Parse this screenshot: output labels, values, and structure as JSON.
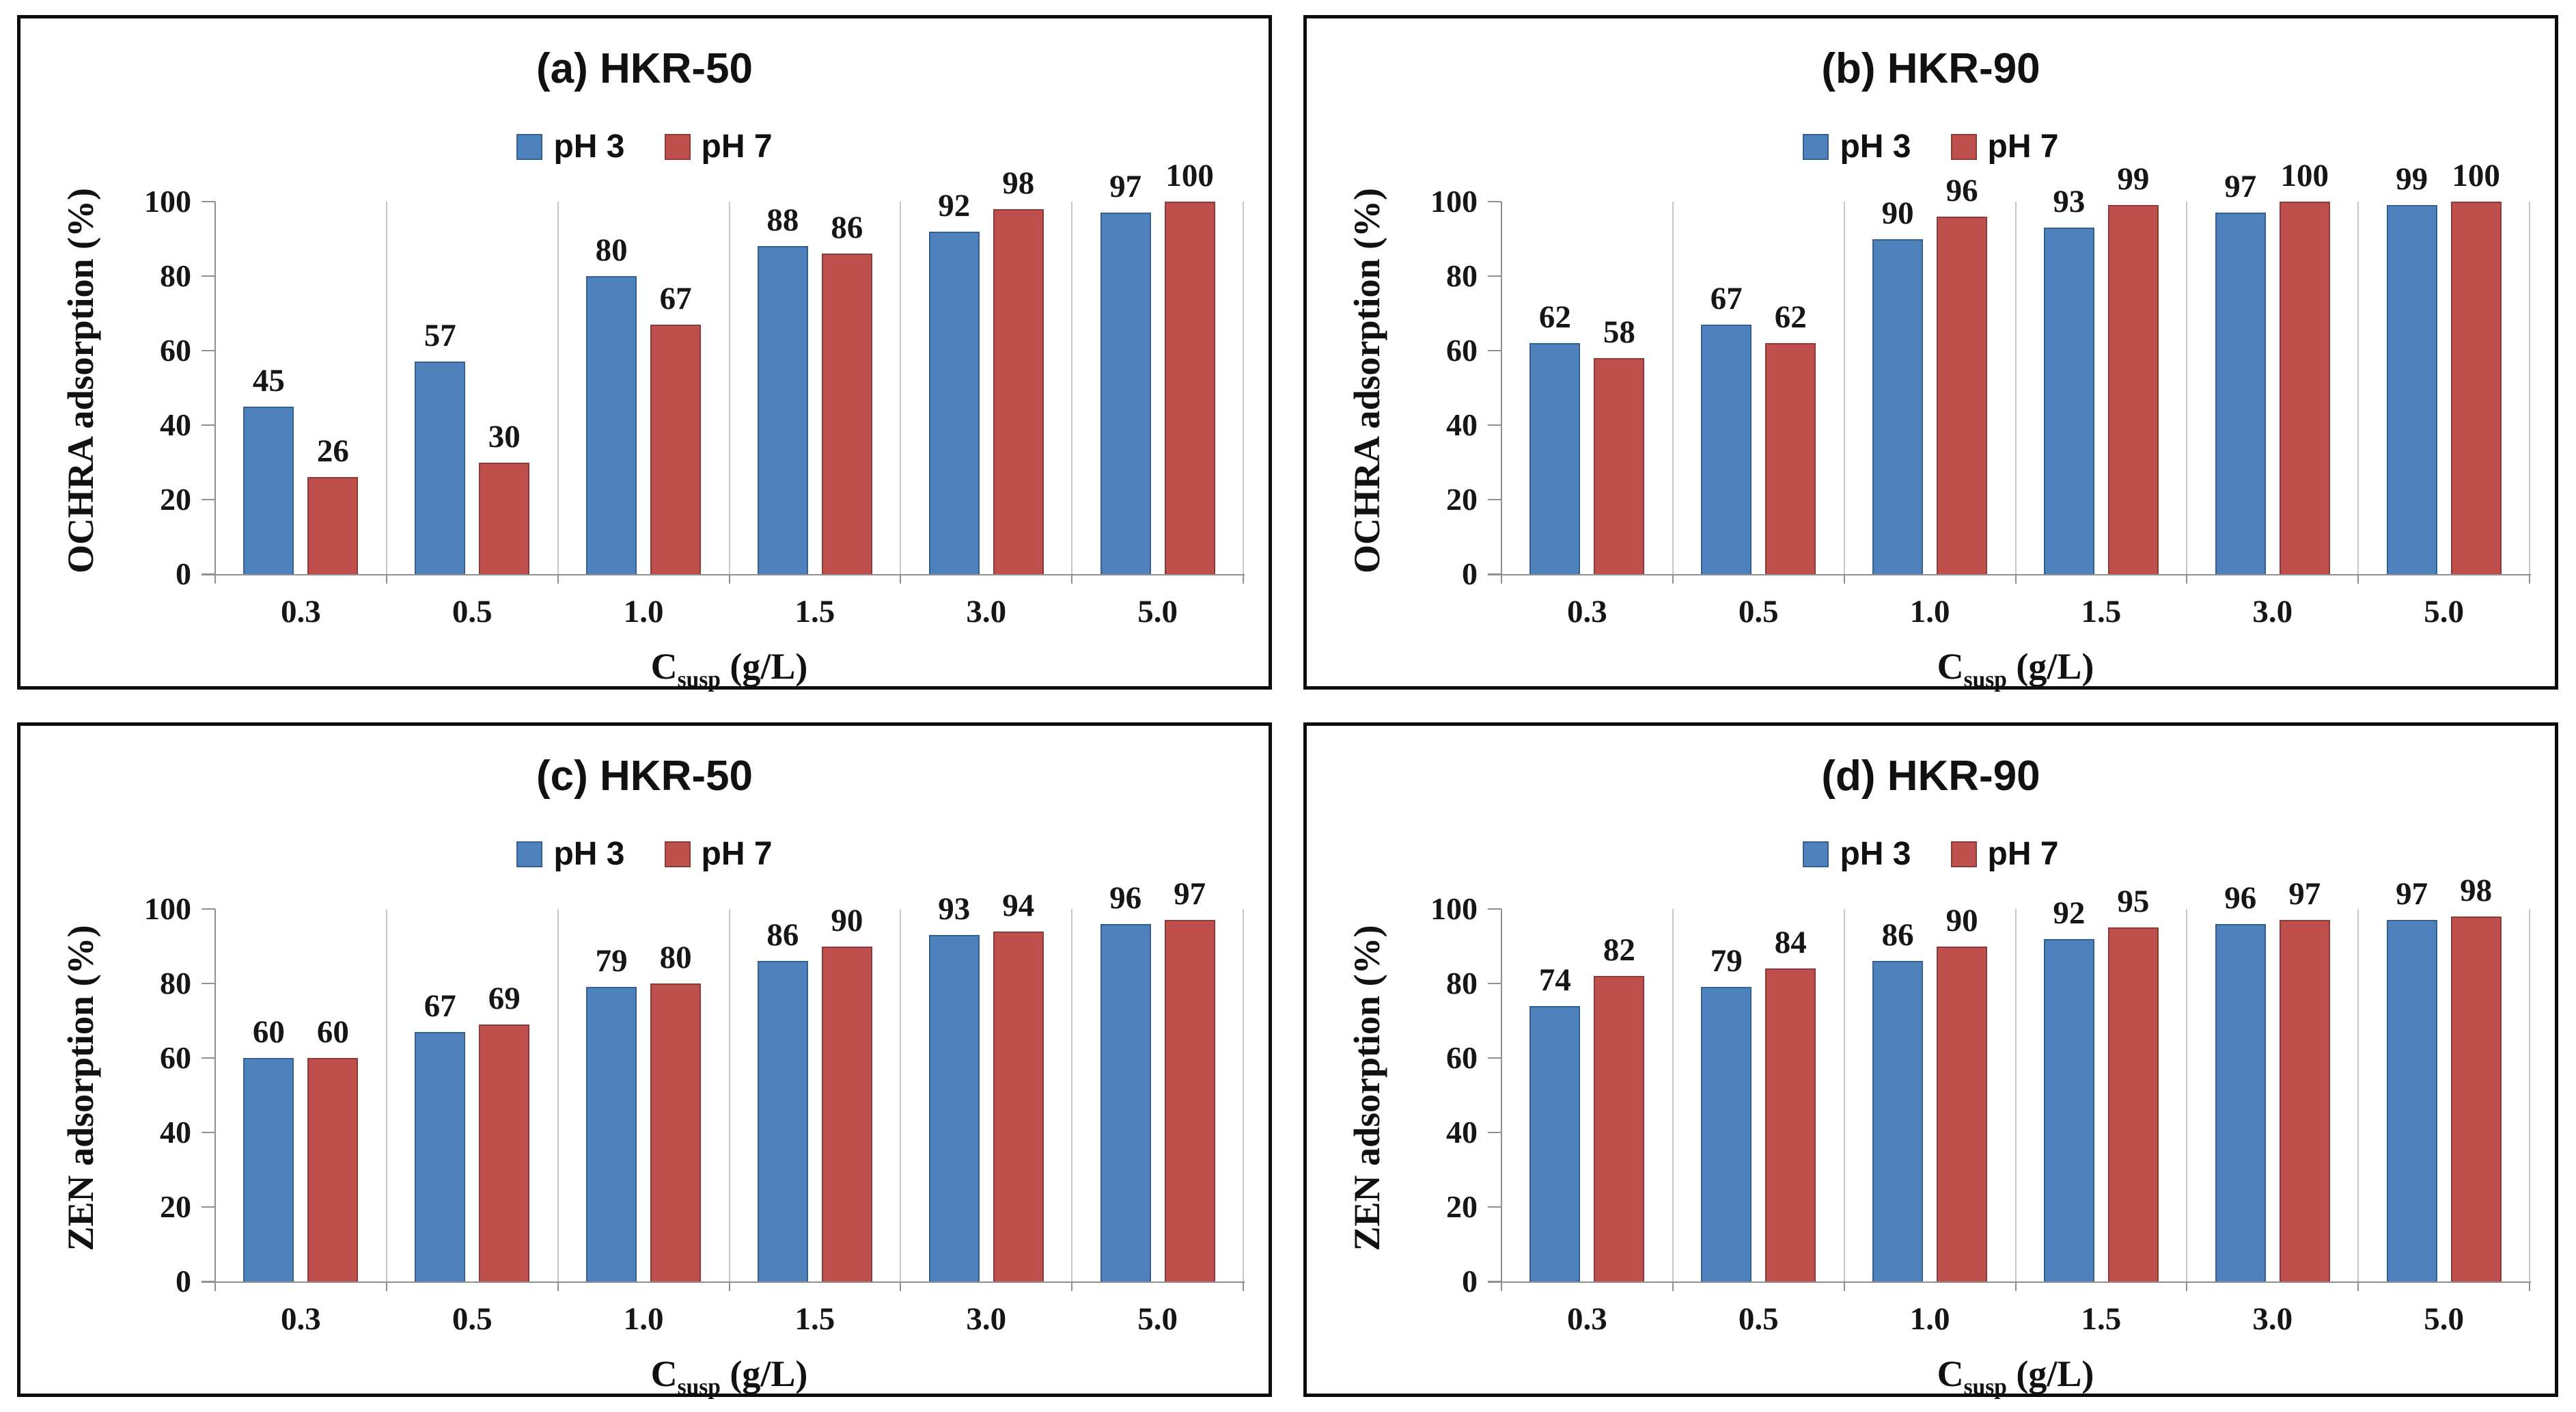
{
  "figure": {
    "background": "#ffffff",
    "panel_border_color": "#0d0d0d"
  },
  "axes": {
    "yticks": [
      "0",
      "20",
      "40",
      "60",
      "80",
      "100"
    ],
    "ylim": [
      0,
      100
    ],
    "xlabel_symbol": "C",
    "xlabel_subscript": "susp",
    "xlabel_units": " (g/L)",
    "gridline_color": "#c7c7c7",
    "axis_line_color": "#8f8f8f"
  },
  "chart_data": [
    {
      "type": "bar",
      "title": "(a) HKR-50",
      "ylabel": "OCHRA adsorption (%)",
      "xlabel": "Csusp (g/L)",
      "ylim": [
        0,
        100
      ],
      "legend_position": "top-center",
      "grid": "vertical-category-boundaries",
      "categories": [
        "0.3",
        "0.5",
        "1.0",
        "1.5",
        "3.0",
        "5.0"
      ],
      "series": [
        {
          "name": "pH 3",
          "color": "#4F81BD",
          "border_color": "#36618f",
          "values": [
            45,
            57,
            80,
            88,
            92,
            97
          ]
        },
        {
          "name": "pH 7",
          "color": "#C0504D",
          "border_color": "#8e3b38",
          "values": [
            26,
            30,
            67,
            86,
            98,
            100
          ]
        }
      ]
    },
    {
      "type": "bar",
      "title": "(b) HKR-90",
      "ylabel": "OCHRA adsorption (%)",
      "xlabel": "Csusp (g/L)",
      "ylim": [
        0,
        100
      ],
      "legend_position": "top-center",
      "grid": "vertical-category-boundaries",
      "categories": [
        "0.3",
        "0.5",
        "1.0",
        "1.5",
        "3.0",
        "5.0"
      ],
      "series": [
        {
          "name": "pH 3",
          "color": "#4F81BD",
          "border_color": "#36618f",
          "values": [
            62,
            67,
            90,
            93,
            97,
            99
          ]
        },
        {
          "name": "pH 7",
          "color": "#C0504D",
          "border_color": "#8e3b38",
          "values": [
            58,
            62,
            96,
            99,
            100,
            100
          ]
        }
      ]
    },
    {
      "type": "bar",
      "title": "(c) HKR-50",
      "ylabel": "ZEN adsorption (%)",
      "xlabel": "Csusp (g/L)",
      "ylim": [
        0,
        100
      ],
      "legend_position": "top-center",
      "grid": "vertical-category-boundaries",
      "categories": [
        "0.3",
        "0.5",
        "1.0",
        "1.5",
        "3.0",
        "5.0"
      ],
      "series": [
        {
          "name": "pH 3",
          "color": "#4F81BD",
          "border_color": "#36618f",
          "values": [
            60,
            67,
            79,
            86,
            93,
            96
          ]
        },
        {
          "name": "pH 7",
          "color": "#C0504D",
          "border_color": "#8e3b38",
          "values": [
            60,
            69,
            80,
            90,
            94,
            97
          ]
        }
      ]
    },
    {
      "type": "bar",
      "title": "(d) HKR-90",
      "ylabel": "ZEN adsorption (%)",
      "xlabel": "Csusp (g/L)",
      "ylim": [
        0,
        100
      ],
      "legend_position": "top-center",
      "grid": "vertical-category-boundaries",
      "categories": [
        "0.3",
        "0.5",
        "1.0",
        "1.5",
        "3.0",
        "5.0"
      ],
      "series": [
        {
          "name": "pH 3",
          "color": "#4F81BD",
          "border_color": "#36618f",
          "values": [
            74,
            79,
            86,
            92,
            96,
            97
          ]
        },
        {
          "name": "pH 7",
          "color": "#C0504D",
          "border_color": "#8e3b38",
          "values": [
            82,
            84,
            90,
            95,
            97,
            98
          ]
        }
      ]
    }
  ]
}
